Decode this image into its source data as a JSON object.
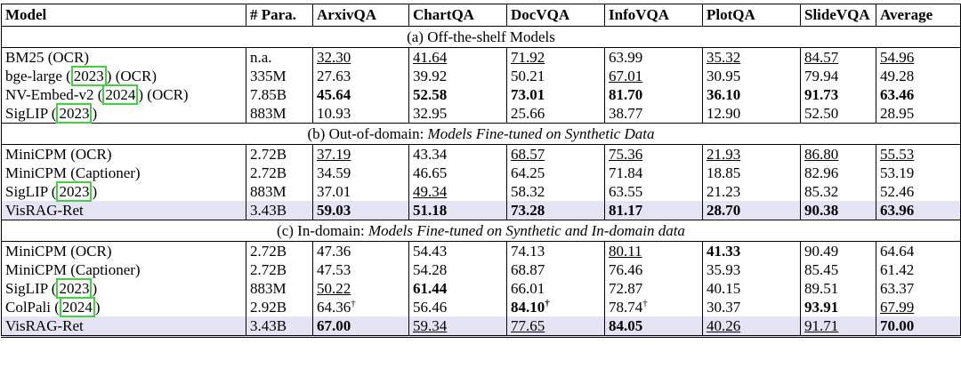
{
  "table": {
    "columns": [
      "Model",
      "# Para.",
      "ArxivQA",
      "ChartQA",
      "DocVQA",
      "InfoVQA",
      "PlotQA",
      "SlideVQA",
      "Average"
    ],
    "sections": [
      {
        "title": [
          "(a) Off-the-shelf Models"
        ],
        "rows": [
          {
            "model": [
              "BM25 (OCR)"
            ],
            "params": "n.a.",
            "scores": [
              "32.30",
              "41.64",
              "71.92",
              "63.99",
              "35.32",
              "84.57",
              "54.96"
            ],
            "bold": [],
            "underline": [
              0,
              1,
              2,
              4,
              5,
              6
            ]
          },
          {
            "model": [
              "bge-large (",
              "2023",
              ") (OCR)"
            ],
            "params": "335M",
            "scores": [
              "27.63",
              "39.92",
              "50.21",
              "67.01",
              "30.95",
              "79.94",
              "49.28"
            ],
            "bold": [],
            "underline": [
              3
            ]
          },
          {
            "model": [
              "NV-Embed-v2 (",
              "2024",
              ") (OCR)"
            ],
            "params": "7.85B",
            "scores": [
              "45.64",
              "52.58",
              "73.01",
              "81.70",
              "36.10",
              "91.73",
              "63.46"
            ],
            "bold": [
              0,
              1,
              2,
              3,
              4,
              5,
              6
            ],
            "underline": []
          },
          {
            "model": [
              "SigLIP (",
              "2023",
              ")"
            ],
            "params": "883M",
            "scores": [
              "10.93",
              "32.95",
              "25.66",
              "38.77",
              "12.90",
              "52.50",
              "28.95"
            ],
            "bold": [],
            "underline": []
          }
        ]
      },
      {
        "title": [
          "(b) Out-of-domain: ",
          "Models Fine-tuned on Synthetic Data"
        ],
        "rows": [
          {
            "model": [
              "MiniCPM (OCR)"
            ],
            "params": "2.72B",
            "scores": [
              "37.19",
              "43.34",
              "68.57",
              "75.36",
              "21.93",
              "86.80",
              "55.53"
            ],
            "bold": [],
            "underline": [
              0,
              2,
              3,
              4,
              5,
              6
            ]
          },
          {
            "model": [
              "MiniCPM (Captioner)"
            ],
            "params": "2.72B",
            "scores": [
              "34.59",
              "46.65",
              "64.25",
              "71.84",
              "18.85",
              "82.96",
              "53.19"
            ],
            "bold": [],
            "underline": []
          },
          {
            "model": [
              "SigLIP (",
              "2023",
              ")"
            ],
            "params": "883M",
            "scores": [
              "37.01",
              "49.34",
              "58.32",
              "63.55",
              "21.23",
              "85.32",
              "52.46"
            ],
            "bold": [],
            "underline": [
              1
            ]
          },
          {
            "model": [
              "VisRAG-Ret"
            ],
            "params": "3.43B",
            "scores": [
              "59.03",
              "51.18",
              "73.28",
              "81.17",
              "28.70",
              "90.38",
              "63.96"
            ],
            "bold": [
              0,
              1,
              2,
              3,
              4,
              5,
              6
            ],
            "underline": [],
            "highlight": true
          }
        ]
      },
      {
        "title": [
          "(c) In-domain: ",
          "Models Fine-tuned on Synthetic and In-domain data"
        ],
        "rows": [
          {
            "model": [
              "MiniCPM (OCR)"
            ],
            "params": "2.72B",
            "scores": [
              "47.36",
              "54.43",
              "74.13",
              "80.11",
              "41.33",
              "90.49",
              "64.64"
            ],
            "bold": [
              4
            ],
            "underline": [
              3
            ]
          },
          {
            "model": [
              "MiniCPM (Captioner)"
            ],
            "params": "2.72B",
            "scores": [
              "47.53",
              "54.28",
              "68.87",
              "76.46",
              "35.93",
              "85.45",
              "61.42"
            ],
            "bold": [],
            "underline": []
          },
          {
            "model": [
              "SigLIP (",
              "2023",
              ")"
            ],
            "params": "883M",
            "scores": [
              "50.22",
              "61.44",
              "66.01",
              "72.87",
              "40.15",
              "89.51",
              "63.37"
            ],
            "bold": [
              1
            ],
            "underline": [
              0
            ]
          },
          {
            "model": [
              "ColPali (",
              "2024",
              ")"
            ],
            "params": "2.92B",
            "scores": [
              {
                "text": "64.36",
                "note": "†"
              },
              "56.46",
              {
                "text": "84.10",
                "note": "†"
              },
              {
                "text": "78.74",
                "note": "†"
              },
              "30.37",
              "93.91",
              "67.99"
            ],
            "bold": [
              2,
              5
            ],
            "underline": [
              6
            ]
          },
          {
            "model": [
              "VisRAG-Ret"
            ],
            "params": "3.43B",
            "scores": [
              "67.00",
              "59.34",
              "77.65",
              "84.05",
              "40.26",
              "91.71",
              "70.00"
            ],
            "bold": [
              0,
              3,
              6
            ],
            "underline": [
              1,
              2,
              4,
              5
            ],
            "highlight": true
          }
        ]
      }
    ]
  }
}
